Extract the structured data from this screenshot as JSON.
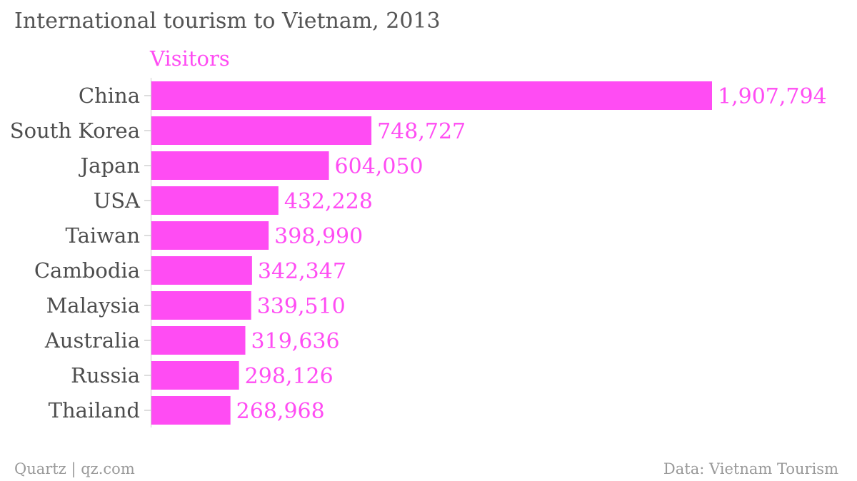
{
  "chart_data": {
    "type": "bar",
    "orientation": "horizontal",
    "title": "International tourism to Vietnam, 2013",
    "series": [
      {
        "name": "Visitors",
        "color": "#ff4cf3",
        "values": [
          1907794,
          748727,
          604050,
          432228,
          398990,
          342347,
          339510,
          319636,
          298126,
          268968
        ],
        "labels": [
          "1,907,794",
          "748,727",
          "604,050",
          "432,228",
          "398,990",
          "342,347",
          "339,510",
          "319,636",
          "298,126",
          "268,968"
        ]
      }
    ],
    "categories": [
      "China",
      "South Korea",
      "Japan",
      "USA",
      "Taiwan",
      "Cambodia",
      "Malaysia",
      "Australia",
      "Russia",
      "Thailand"
    ],
    "xlim": [
      0,
      1907794
    ],
    "grid": false,
    "legend": "top-left"
  },
  "footer": {
    "source_left": "Quartz | qz.com",
    "source_right": "Data: Vietnam Tourism"
  }
}
